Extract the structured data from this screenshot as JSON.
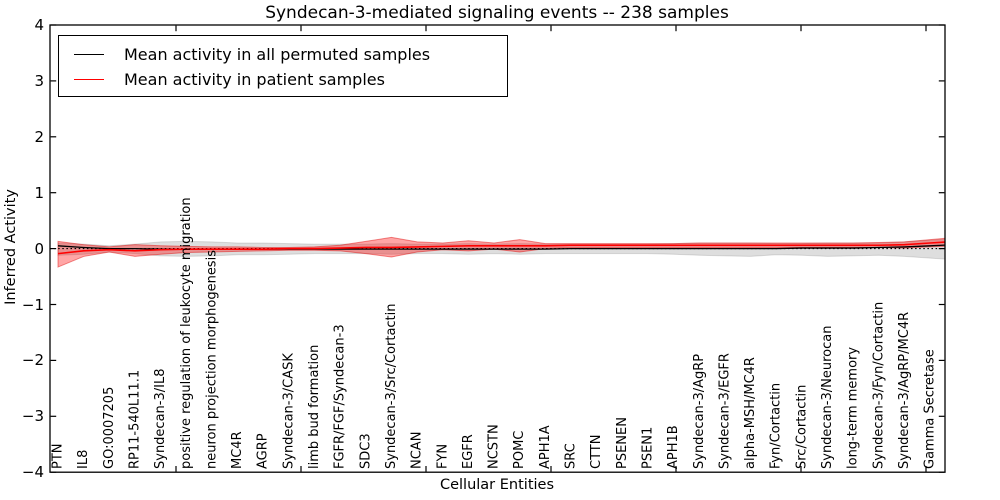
{
  "title": "Syndecan-3-mediated signaling events -- 238 samples",
  "axes": {
    "ylabel": "Inferred Activity",
    "xlabel": "Cellular Entities",
    "ylim": [
      -4,
      4
    ],
    "ytick_values": [
      4,
      3,
      2,
      1,
      0,
      -1,
      -2,
      -3,
      -4
    ],
    "ytick_labels": [
      "4",
      "3",
      "2",
      "1",
      "0",
      "−1",
      "−2",
      "−3",
      "−4"
    ]
  },
  "legend": {
    "items": [
      {
        "label": "Mean activity in all permuted samples",
        "color": "#000000"
      },
      {
        "label": "Mean activity in patient samples",
        "color": "#ff0000"
      }
    ],
    "position": "upper left"
  },
  "chart_data": {
    "type": "line",
    "title": "Syndecan-3-mediated signaling events -- 238 samples",
    "xlabel": "Cellular Entities",
    "ylabel": "Inferred Activity",
    "ylim": [
      -4,
      4
    ],
    "grid": false,
    "zero_line": true,
    "legend_position": "upper left",
    "categories": [
      "PTN",
      "IL8",
      "GO:0007205",
      "RP11-540L11.1",
      "Syndecan-3/IL8",
      "positive regulation of leukocyte migration",
      "neuron projection morphogenesis",
      "MC4R",
      "AGRP",
      "Syndecan-3/CASK",
      "limb bud formation",
      "FGFR/FGF/Syndecan-3",
      "SDC3",
      "Syndecan-3/Src/Cortactin",
      "NCAN",
      "FYN",
      "EGFR",
      "NCSTN",
      "POMC",
      "APH1A",
      "SRC",
      "CTTN",
      "PSENEN",
      "PSEN1",
      "APH1B",
      "Syndecan-3/AgRP",
      "Syndecan-3/EGFR",
      "alpha-MSH/MC4R",
      "Fyn/Cortactin",
      "Src/Cortactin",
      "Syndecan-3/Neurocan",
      "long-term memory",
      "Syndecan-3/Fyn/Cortactin",
      "Syndecan-3/AgRP/MC4R",
      "Gamma Secretase"
    ],
    "series": [
      {
        "name": "Mean activity in all permuted samples",
        "color": "#000000",
        "values": [
          0.05,
          0.02,
          0.0,
          0.0,
          -0.01,
          -0.01,
          -0.01,
          -0.01,
          -0.01,
          -0.01,
          -0.01,
          -0.01,
          -0.01,
          -0.01,
          -0.01,
          -0.01,
          -0.01,
          -0.01,
          -0.01,
          -0.01,
          0.0,
          0.0,
          0.0,
          0.0,
          0.0,
          0.0,
          0.0,
          0.0,
          0.0,
          0.01,
          0.01,
          0.01,
          0.02,
          0.03,
          0.05
        ]
      },
      {
        "name": "Mean activity in patient samples",
        "color": "#ff0000",
        "values": [
          -0.09,
          -0.04,
          -0.02,
          -0.04,
          -0.02,
          -0.01,
          -0.01,
          -0.01,
          -0.01,
          0.0,
          0.0,
          0.01,
          0.02,
          0.02,
          0.03,
          0.04,
          0.05,
          0.05,
          0.05,
          0.05,
          0.06,
          0.06,
          0.06,
          0.06,
          0.06,
          0.06,
          0.06,
          0.06,
          0.06,
          0.06,
          0.06,
          0.06,
          0.06,
          0.07,
          0.1
        ]
      }
    ],
    "bands": [
      {
        "name": "permuted samples activity range",
        "color": "#000000",
        "fill_opacity": 0.13,
        "edge_color": "#000000",
        "edge_opacity": 0.12,
        "upper": [
          0.1,
          0.08,
          0.05,
          0.08,
          0.12,
          0.13,
          0.12,
          0.1,
          0.1,
          0.09,
          0.08,
          0.08,
          0.08,
          0.09,
          0.08,
          0.08,
          0.09,
          0.08,
          0.09,
          0.08,
          0.08,
          0.08,
          0.08,
          0.08,
          0.09,
          0.1,
          0.1,
          0.1,
          0.09,
          0.09,
          0.1,
          0.1,
          0.1,
          0.12,
          0.15
        ],
        "lower": [
          -0.12,
          -0.1,
          -0.06,
          -0.09,
          -0.13,
          -0.14,
          -0.13,
          -0.11,
          -0.11,
          -0.1,
          -0.09,
          -0.09,
          -0.09,
          -0.1,
          -0.09,
          -0.09,
          -0.1,
          -0.09,
          -0.1,
          -0.09,
          -0.09,
          -0.09,
          -0.09,
          -0.09,
          -0.1,
          -0.12,
          -0.13,
          -0.14,
          -0.11,
          -0.12,
          -0.14,
          -0.13,
          -0.12,
          -0.14,
          -0.17
        ]
      },
      {
        "name": "patient samples activity range",
        "color": "#ff0000",
        "fill_opacity": 0.35,
        "edge_color": "#dd0000",
        "edge_opacity": 0.45,
        "upper": [
          0.13,
          0.07,
          0.03,
          0.07,
          0.05,
          0.04,
          0.03,
          0.03,
          0.02,
          0.02,
          0.03,
          0.06,
          0.13,
          0.2,
          0.12,
          0.1,
          0.14,
          0.1,
          0.16,
          0.09,
          0.09,
          0.09,
          0.09,
          0.09,
          0.09,
          0.1,
          0.1,
          0.1,
          0.1,
          0.1,
          0.1,
          0.1,
          0.11,
          0.12,
          0.16
        ],
        "lower": [
          -0.33,
          -0.14,
          -0.06,
          -0.14,
          -0.1,
          -0.07,
          -0.06,
          -0.05,
          -0.04,
          -0.03,
          -0.03,
          -0.04,
          -0.09,
          -0.15,
          -0.06,
          -0.02,
          -0.04,
          -0.01,
          -0.06,
          0.0,
          0.02,
          0.02,
          0.02,
          0.02,
          0.02,
          0.02,
          0.02,
          0.02,
          0.02,
          0.02,
          0.02,
          0.02,
          0.02,
          0.01,
          0.03
        ]
      }
    ]
  }
}
